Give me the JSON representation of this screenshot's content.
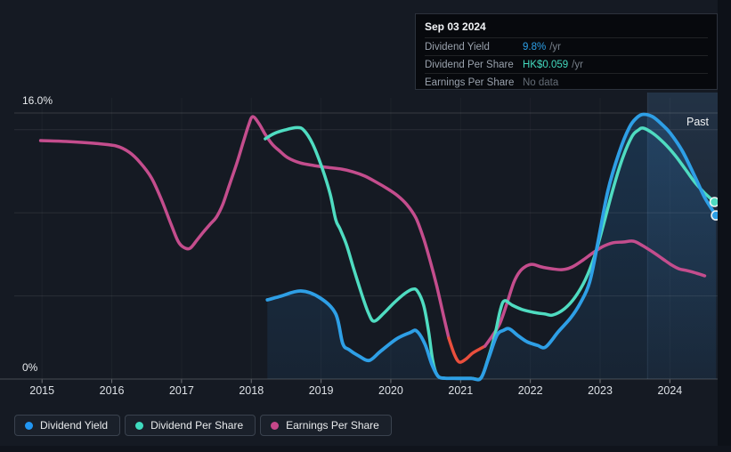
{
  "tooltip": {
    "date": "Sep 03 2024",
    "rows": [
      {
        "label": "Dividend Yield",
        "value": "9.8%",
        "suffix": "/yr",
        "value_color": "#2d9fe6"
      },
      {
        "label": "Dividend Per Share",
        "value": "HK$0.059",
        "suffix": "/yr",
        "value_color": "#43d9be"
      },
      {
        "label": "Earnings Per Share",
        "value": "No data",
        "suffix": "",
        "value_color": "#646c76"
      }
    ]
  },
  "labels": {
    "y_top": "16.0%",
    "y_bottom": "0%",
    "past": "Past"
  },
  "legend": [
    {
      "label": "Dividend Yield",
      "color": "#2196f3"
    },
    {
      "label": "Dividend Per Share",
      "color": "#3fdbbf"
    },
    {
      "label": "Earnings Per Share",
      "color": "#c6478a"
    }
  ],
  "chart_data": {
    "type": "line",
    "title": "Dividend history",
    "x_axis": {
      "ticks": [
        "2015",
        "2016",
        "2017",
        "2018",
        "2019",
        "2020",
        "2021",
        "2022",
        "2023",
        "2024"
      ],
      "range": [
        2014.95,
        2024.69
      ]
    },
    "y_axis": {
      "top_label": "16.0%",
      "bottom_label": "0%",
      "range_percent": [
        0,
        16
      ],
      "unlabeled_gridlines_percent": [
        5,
        10,
        15
      ]
    },
    "past_region": {
      "label": "Past",
      "start_year": 2023.68,
      "end_year": 2024.69
    },
    "series": [
      {
        "name": "Dividend Yield",
        "color": "#2e9fe6",
        "area_fill": true,
        "end_marker": true,
        "points": [
          [
            2018.23,
            4.76
          ],
          [
            2018.42,
            4.98
          ],
          [
            2018.71,
            5.3
          ],
          [
            2018.99,
            4.87
          ],
          [
            2019.21,
            3.91
          ],
          [
            2019.31,
            2.14
          ],
          [
            2019.4,
            1.77
          ],
          [
            2019.54,
            1.39
          ],
          [
            2019.69,
            1.12
          ],
          [
            2019.85,
            1.66
          ],
          [
            2020.08,
            2.41
          ],
          [
            2020.27,
            2.78
          ],
          [
            2020.37,
            2.89
          ],
          [
            2020.49,
            2.09
          ],
          [
            2020.59,
            0.86
          ],
          [
            2020.68,
            0.16
          ],
          [
            2020.78,
            0.05
          ],
          [
            2020.95,
            0.04
          ],
          [
            2021.15,
            0.04
          ],
          [
            2021.29,
            0.05
          ],
          [
            2021.4,
            1.23
          ],
          [
            2021.52,
            2.62
          ],
          [
            2021.62,
            2.94
          ],
          [
            2021.7,
            3.02
          ],
          [
            2021.82,
            2.62
          ],
          [
            2021.95,
            2.25
          ],
          [
            2022.1,
            2.03
          ],
          [
            2022.22,
            1.93
          ],
          [
            2022.4,
            2.84
          ],
          [
            2022.58,
            3.69
          ],
          [
            2022.72,
            4.6
          ],
          [
            2022.85,
            5.83
          ],
          [
            2022.97,
            8.24
          ],
          [
            2023.11,
            11.29
          ],
          [
            2023.27,
            13.59
          ],
          [
            2023.42,
            15.14
          ],
          [
            2023.53,
            15.73
          ],
          [
            2023.62,
            15.92
          ],
          [
            2023.75,
            15.78
          ],
          [
            2023.89,
            15.3
          ],
          [
            2024.01,
            14.77
          ],
          [
            2024.18,
            13.7
          ],
          [
            2024.35,
            12.25
          ],
          [
            2024.5,
            10.91
          ],
          [
            2024.66,
            9.84
          ]
        ]
      },
      {
        "name": "Dividend Per Share",
        "color": "#4fdcc1",
        "area_fill": false,
        "end_marker": true,
        "points": [
          [
            2018.2,
            14.45
          ],
          [
            2018.33,
            14.77
          ],
          [
            2018.48,
            14.98
          ],
          [
            2018.65,
            15.12
          ],
          [
            2018.75,
            14.98
          ],
          [
            2018.88,
            14.13
          ],
          [
            2019.02,
            12.63
          ],
          [
            2019.13,
            11.13
          ],
          [
            2019.21,
            9.58
          ],
          [
            2019.27,
            9.04
          ],
          [
            2019.36,
            8.13
          ],
          [
            2019.46,
            6.74
          ],
          [
            2019.58,
            5.14
          ],
          [
            2019.68,
            3.96
          ],
          [
            2019.76,
            3.48
          ],
          [
            2019.9,
            3.96
          ],
          [
            2020.05,
            4.6
          ],
          [
            2020.2,
            5.14
          ],
          [
            2020.31,
            5.4
          ],
          [
            2020.38,
            5.3
          ],
          [
            2020.47,
            4.44
          ],
          [
            2020.54,
            2.89
          ],
          [
            2020.6,
            1.12
          ],
          [
            2020.66,
            0.27
          ],
          [
            2020.74,
            0.06
          ],
          [
            2020.95,
            0.05
          ],
          [
            2021.15,
            0.05
          ],
          [
            2021.29,
            0.06
          ],
          [
            2021.39,
            1.18
          ],
          [
            2021.49,
            2.62
          ],
          [
            2021.57,
            4.17
          ],
          [
            2021.63,
            4.71
          ],
          [
            2021.74,
            4.44
          ],
          [
            2021.89,
            4.17
          ],
          [
            2022.05,
            4.01
          ],
          [
            2022.21,
            3.91
          ],
          [
            2022.32,
            3.85
          ],
          [
            2022.49,
            4.23
          ],
          [
            2022.64,
            4.92
          ],
          [
            2022.79,
            5.99
          ],
          [
            2022.92,
            7.38
          ],
          [
            2023.05,
            9.31
          ],
          [
            2023.19,
            11.5
          ],
          [
            2023.33,
            13.38
          ],
          [
            2023.46,
            14.61
          ],
          [
            2023.55,
            14.98
          ],
          [
            2023.62,
            15.09
          ],
          [
            2023.76,
            14.77
          ],
          [
            2023.92,
            14.18
          ],
          [
            2024.07,
            13.48
          ],
          [
            2024.22,
            12.63
          ],
          [
            2024.36,
            11.82
          ],
          [
            2024.5,
            11.18
          ],
          [
            2024.64,
            10.65
          ]
        ]
      },
      {
        "name": "Earnings Per Share",
        "color": "#c44d8d",
        "area_fill": false,
        "end_marker": false,
        "negative_color": "#e94f3d",
        "negative_segment": [
          2020.83,
          2021.35
        ],
        "points": [
          [
            2014.98,
            14.34
          ],
          [
            2015.35,
            14.29
          ],
          [
            2015.74,
            14.18
          ],
          [
            2016.06,
            14.02
          ],
          [
            2016.25,
            13.64
          ],
          [
            2016.41,
            13.0
          ],
          [
            2016.57,
            12.09
          ],
          [
            2016.71,
            10.81
          ],
          [
            2016.85,
            9.31
          ],
          [
            2016.95,
            8.29
          ],
          [
            2017.03,
            7.92
          ],
          [
            2017.12,
            7.86
          ],
          [
            2017.22,
            8.35
          ],
          [
            2017.32,
            8.88
          ],
          [
            2017.41,
            9.31
          ],
          [
            2017.5,
            9.74
          ],
          [
            2017.59,
            10.49
          ],
          [
            2017.69,
            11.72
          ],
          [
            2017.79,
            12.95
          ],
          [
            2017.88,
            14.18
          ],
          [
            2017.96,
            15.25
          ],
          [
            2018.02,
            15.78
          ],
          [
            2018.11,
            15.36
          ],
          [
            2018.2,
            14.71
          ],
          [
            2018.3,
            14.12
          ],
          [
            2018.41,
            13.7
          ],
          [
            2018.52,
            13.32
          ],
          [
            2018.7,
            13.0
          ],
          [
            2018.9,
            12.84
          ],
          [
            2019.09,
            12.73
          ],
          [
            2019.29,
            12.63
          ],
          [
            2019.46,
            12.46
          ],
          [
            2019.63,
            12.2
          ],
          [
            2019.8,
            11.82
          ],
          [
            2019.95,
            11.45
          ],
          [
            2020.1,
            11.02
          ],
          [
            2020.23,
            10.49
          ],
          [
            2020.36,
            9.68
          ],
          [
            2020.47,
            8.45
          ],
          [
            2020.57,
            7.01
          ],
          [
            2020.66,
            5.56
          ],
          [
            2020.75,
            3.91
          ],
          [
            2020.83,
            2.46
          ],
          [
            2020.91,
            1.5
          ],
          [
            2020.98,
            1.02
          ],
          [
            2021.07,
            1.18
          ],
          [
            2021.17,
            1.55
          ],
          [
            2021.28,
            1.82
          ],
          [
            2021.35,
            1.98
          ],
          [
            2021.45,
            2.57
          ],
          [
            2021.56,
            3.32
          ],
          [
            2021.66,
            4.49
          ],
          [
            2021.76,
            5.78
          ],
          [
            2021.85,
            6.47
          ],
          [
            2021.94,
            6.79
          ],
          [
            2022.03,
            6.9
          ],
          [
            2022.16,
            6.74
          ],
          [
            2022.31,
            6.63
          ],
          [
            2022.46,
            6.58
          ],
          [
            2022.6,
            6.74
          ],
          [
            2022.76,
            7.17
          ],
          [
            2022.9,
            7.6
          ],
          [
            2023.04,
            7.97
          ],
          [
            2023.18,
            8.19
          ],
          [
            2023.33,
            8.24
          ],
          [
            2023.48,
            8.29
          ],
          [
            2023.61,
            8.02
          ],
          [
            2023.75,
            7.65
          ],
          [
            2023.88,
            7.28
          ],
          [
            2024.01,
            6.9
          ],
          [
            2024.13,
            6.63
          ],
          [
            2024.25,
            6.52
          ],
          [
            2024.38,
            6.37
          ],
          [
            2024.5,
            6.21
          ]
        ]
      }
    ]
  }
}
